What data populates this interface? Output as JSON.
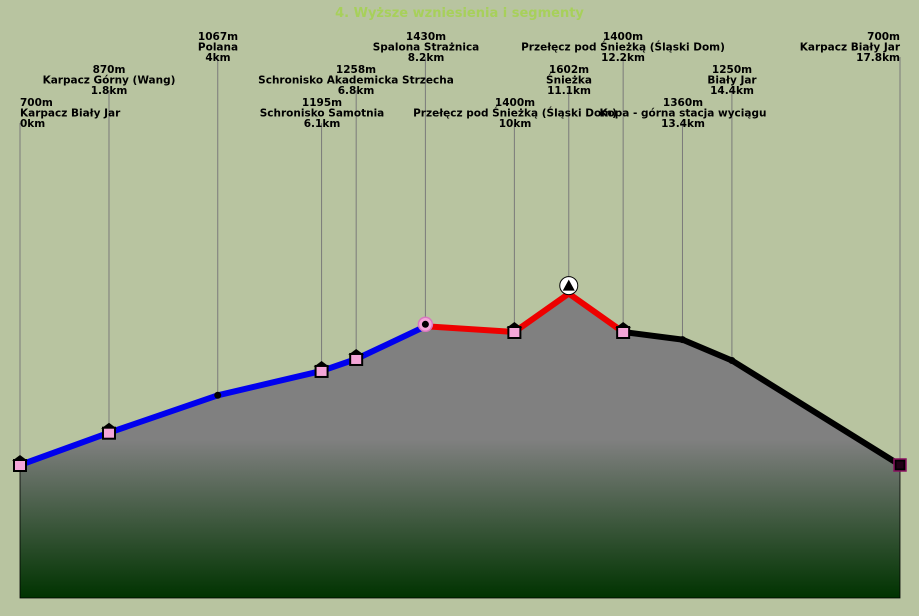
{
  "chart_data": {
    "type": "area",
    "title": "4. Wyższe wzniesienia i segmenty",
    "xunit": "km",
    "yunit": "m",
    "colors": {
      "background": "#b8c4a0",
      "fill_top": "#808080",
      "fill_bottom": "#003300",
      "guide": "#7a7a7a",
      "marker_fill": "#f4a6d8"
    },
    "segments": [
      {
        "color": "#0000ee",
        "from_km": 0,
        "to_km": 8.2
      },
      {
        "color": "#ee0000",
        "from_km": 8.2,
        "to_km": 12.2
      },
      {
        "color": "#000000",
        "from_km": 12.2,
        "to_km": 17.8
      }
    ],
    "points": [
      {
        "name": "Karpacz Biały Jar",
        "elev_label": "700m",
        "km_label": "0km",
        "x": 0,
        "y": 700,
        "marker": "hut-square"
      },
      {
        "name": "Karpacz Górny (Wang)",
        "elev_label": "870m",
        "km_label": "1.8km",
        "x": 1.8,
        "y": 870,
        "marker": "hut-square"
      },
      {
        "name": "Polana",
        "elev_label": "1067m",
        "km_label": "4km",
        "x": 4,
        "y": 1067,
        "marker": "dot"
      },
      {
        "name": "Schronisko Samotnia",
        "elev_label": "1195m",
        "km_label": "6.1km",
        "x": 6.1,
        "y": 1195,
        "marker": "hut-square"
      },
      {
        "name": "Schronisko Akademicka Strzecha",
        "elev_label": "1258m",
        "km_label": "6.8km",
        "x": 6.8,
        "y": 1258,
        "marker": "hut-square"
      },
      {
        "name": "Spalona Strażnica",
        "elev_label": "1430m",
        "km_label": "8.2km",
        "x": 8.2,
        "y": 1430,
        "marker": "pink-circle"
      },
      {
        "name": "Przełęcz pod Śnieżką (Śląski Dom)",
        "elev_label": "1400m",
        "km_label": "10km",
        "x": 10,
        "y": 1400,
        "marker": "hut-square"
      },
      {
        "name": "Śnieżka",
        "elev_label": "1602m",
        "km_label": "11.1km",
        "x": 11.1,
        "y": 1602,
        "marker": "peak"
      },
      {
        "name": "Przełęcz pod Śnieżką (Śląski Dom)",
        "elev_label": "1400m",
        "km_label": "12.2km",
        "x": 12.2,
        "y": 1400,
        "marker": "hut-square"
      },
      {
        "name": "Kopa - górna stacja wyciągu",
        "elev_label": "1360m",
        "km_label": "13.4km",
        "x": 13.4,
        "y": 1360,
        "marker": "dot"
      },
      {
        "name": "Biały Jar",
        "elev_label": "1250m",
        "km_label": "14.4km",
        "x": 14.4,
        "y": 1250,
        "marker": "dot"
      },
      {
        "name": "Karpacz Biały Jar",
        "elev_label": "700m",
        "km_label": "17.8km",
        "x": 17.8,
        "y": 700,
        "marker": "dark-square"
      }
    ]
  }
}
